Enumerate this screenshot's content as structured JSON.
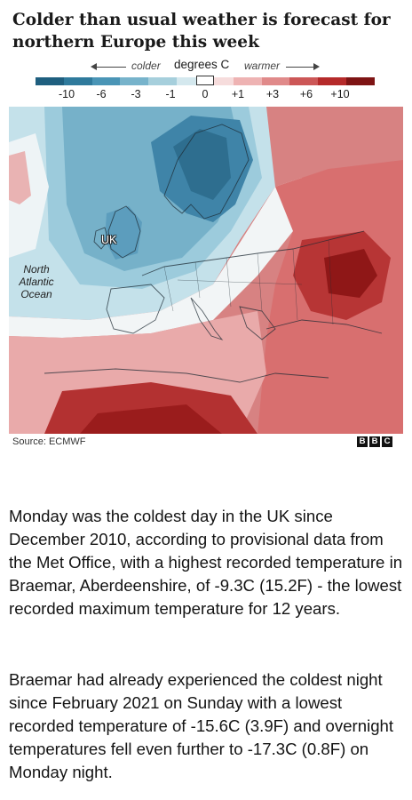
{
  "title": "Colder than usual weather is forecast for northern Europe this week",
  "legend": {
    "colder_label": "colder",
    "heading": "degrees C",
    "warmer_label": "warmer",
    "ticks": [
      "-10",
      "-6",
      "-3",
      "-1",
      "0",
      "+1",
      "+3",
      "+6",
      "+10"
    ],
    "scale_colors": [
      "#1f5f7f",
      "#2f7a9c",
      "#4a95b6",
      "#77b3cb",
      "#a6cfdc",
      "#d4e8ee",
      "#f6dcdc",
      "#eeb3b3",
      "#e08a8a",
      "#cc5757",
      "#b52a2a",
      "#7e1414"
    ]
  },
  "map": {
    "labels": {
      "uk": "UK",
      "ocean": "North Atlantic Ocean"
    },
    "colors": {
      "deep_cold": "#2e6e8f",
      "cold": "#4a92b5",
      "cool": "#8fc2d6",
      "slightly_cool": "#c4e1ea",
      "neutral": "#f2f5f6",
      "slightly_warm": "#efc4c4",
      "warm": "#de8c8c",
      "hot": "#c44e4e",
      "very_hot": "#9a1c1c"
    }
  },
  "source": "Source: ECMWF",
  "logo_letters": [
    "B",
    "B",
    "C"
  ],
  "paragraphs": [
    "Monday was the coldest day in the UK since December 2010, according to provisional data from the Met Office, with a highest recorded temperature in Braemar, Aberdeenshire, of -9.3C (15.2F) - the lowest recorded maximum temperature for 12 years.",
    "Braemar had already experienced the coldest night since February 2021 on Sunday with a lowest recorded temperature of -15.6C (3.9F) and overnight temperatures fell even further to -17.3C (0.8F) on Monday night."
  ]
}
